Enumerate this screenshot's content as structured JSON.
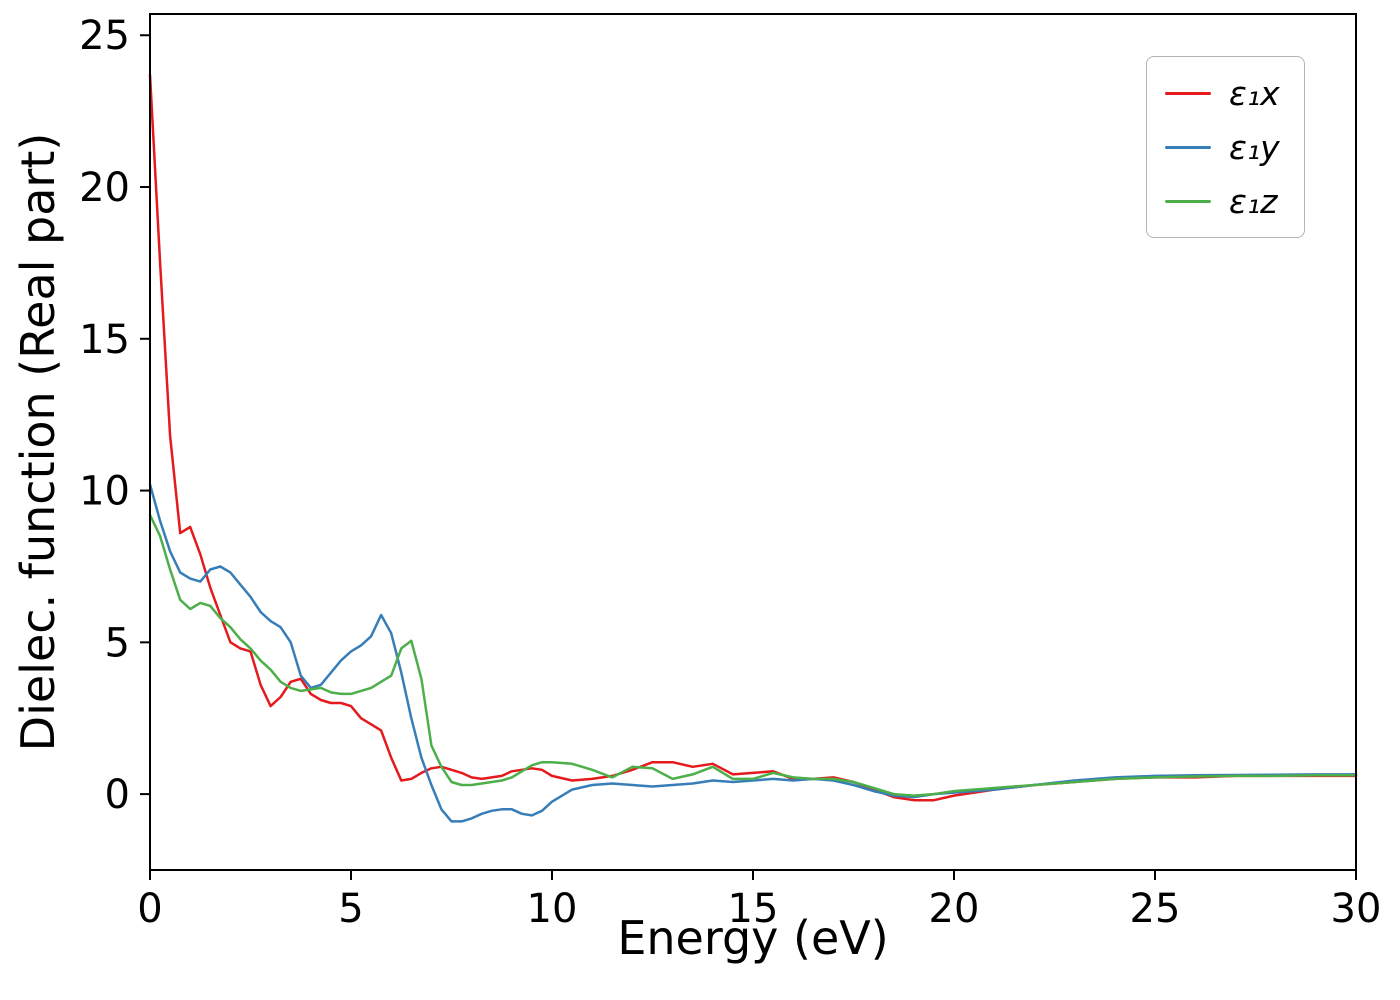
{
  "chart_data": {
    "type": "line",
    "title": "",
    "xlabel": "Energy (eV)",
    "ylabel": "Dielec. function (Real part)",
    "xlim": [
      0,
      30
    ],
    "ylim": [
      -2.5,
      25.7
    ],
    "xticks": [
      0,
      5,
      10,
      15,
      20,
      25,
      30
    ],
    "yticks": [
      0,
      5,
      10,
      15,
      20,
      25
    ],
    "grid": false,
    "legend_position": "upper right",
    "x": [
      0,
      0.25,
      0.5,
      0.75,
      1,
      1.25,
      1.5,
      1.75,
      2,
      2.25,
      2.5,
      2.75,
      3,
      3.25,
      3.5,
      3.75,
      4,
      4.25,
      4.5,
      4.75,
      5,
      5.25,
      5.5,
      5.75,
      6,
      6.25,
      6.5,
      6.75,
      7,
      7.25,
      7.5,
      7.75,
      8,
      8.25,
      8.5,
      8.75,
      9,
      9.25,
      9.5,
      9.75,
      10,
      10.5,
      11,
      11.5,
      12,
      12.5,
      13,
      13.5,
      14,
      14.5,
      15,
      15.5,
      16,
      16.5,
      17,
      17.5,
      18,
      18.5,
      19,
      19.5,
      20,
      21,
      22,
      23,
      24,
      25,
      26,
      27,
      28,
      29,
      30
    ],
    "series": [
      {
        "name": "ε₁x",
        "color": "#e41a1c",
        "values": [
          23.7,
          17.5,
          11.8,
          8.6,
          8.8,
          7.9,
          6.8,
          5.9,
          5.0,
          4.8,
          4.7,
          3.6,
          2.9,
          3.2,
          3.7,
          3.8,
          3.3,
          3.1,
          3.0,
          3.0,
          2.9,
          2.5,
          2.3,
          2.1,
          1.2,
          0.45,
          0.5,
          0.7,
          0.85,
          0.9,
          0.8,
          0.7,
          0.55,
          0.5,
          0.55,
          0.6,
          0.75,
          0.8,
          0.85,
          0.8,
          0.6,
          0.45,
          0.5,
          0.6,
          0.8,
          1.05,
          1.05,
          0.9,
          1.0,
          0.65,
          0.7,
          0.75,
          0.5,
          0.5,
          0.55,
          0.4,
          0.15,
          -0.1,
          -0.2,
          -0.2,
          -0.05,
          0.15,
          0.3,
          0.4,
          0.5,
          0.55,
          0.55,
          0.6,
          0.6,
          0.6,
          0.6
        ]
      },
      {
        "name": "ε₁y",
        "color": "#377eb8",
        "values": [
          10.2,
          9.0,
          8.0,
          7.3,
          7.1,
          7.0,
          7.4,
          7.5,
          7.3,
          6.9,
          6.5,
          6.0,
          5.7,
          5.5,
          5.0,
          3.9,
          3.5,
          3.6,
          4.0,
          4.4,
          4.7,
          4.9,
          5.2,
          5.9,
          5.3,
          4.0,
          2.5,
          1.2,
          0.3,
          -0.5,
          -0.9,
          -0.9,
          -0.8,
          -0.65,
          -0.55,
          -0.5,
          -0.5,
          -0.65,
          -0.7,
          -0.55,
          -0.25,
          0.15,
          0.3,
          0.35,
          0.3,
          0.25,
          0.3,
          0.35,
          0.45,
          0.4,
          0.45,
          0.5,
          0.45,
          0.5,
          0.45,
          0.3,
          0.1,
          -0.05,
          -0.1,
          0.0,
          0.05,
          0.15,
          0.3,
          0.45,
          0.55,
          0.6,
          0.62,
          0.63,
          0.64,
          0.65,
          0.65
        ]
      },
      {
        "name": "ε₁z",
        "color": "#4daf4a",
        "values": [
          9.2,
          8.5,
          7.4,
          6.4,
          6.1,
          6.3,
          6.2,
          5.8,
          5.5,
          5.1,
          4.8,
          4.4,
          4.1,
          3.7,
          3.5,
          3.4,
          3.45,
          3.5,
          3.35,
          3.3,
          3.3,
          3.4,
          3.5,
          3.7,
          3.9,
          4.8,
          5.05,
          3.8,
          1.6,
          0.9,
          0.4,
          0.3,
          0.3,
          0.35,
          0.4,
          0.45,
          0.55,
          0.75,
          0.95,
          1.05,
          1.05,
          1.0,
          0.8,
          0.55,
          0.9,
          0.85,
          0.5,
          0.65,
          0.9,
          0.5,
          0.5,
          0.7,
          0.55,
          0.5,
          0.5,
          0.4,
          0.2,
          0.0,
          -0.05,
          0.0,
          0.1,
          0.2,
          0.3,
          0.4,
          0.5,
          0.55,
          0.58,
          0.6,
          0.6,
          0.62,
          0.62
        ]
      }
    ],
    "style": {
      "axis_color": "#000000",
      "background": "#ffffff",
      "line_width": 2.5
    }
  }
}
